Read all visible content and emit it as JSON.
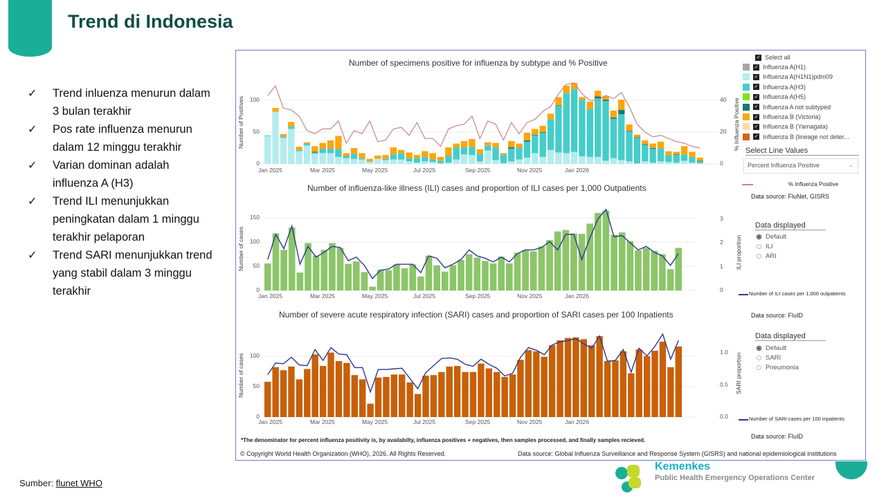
{
  "slide": {
    "title": "Trend di Indonesia",
    "bullets": [
      "Trend inluenza menurun dalam 3 bulan terakhir",
      "Pos rate influenza menurun dalam 12 minggu terakhir",
      "Varian dominan adalah influenza A (H3)",
      "Trend ILI menunjukkan peningkatan dalam 1 minggu terakhir pelaporan",
      "Trend SARI menunjukkan trend yang stabil dalam 3 minggu terakhir"
    ],
    "check_icon": "✓",
    "source_label": "Sumber: ",
    "source_link": "flunet WHO",
    "logo_text": "Kemenkes",
    "logo_subtitle": "Public Health Emergency Operations Center",
    "accent_color": "#1aae97",
    "title_color": "#0e4d46"
  },
  "panel": {
    "legend": {
      "select_all": "Select all",
      "items": [
        {
          "label": "Influenza A(H1)",
          "color": "#a6a6a6"
        },
        {
          "label": "Influenza A(H1N1)pdm09",
          "color": "#b3ecef"
        },
        {
          "label": "Influenza A(H3)",
          "color": "#45cdc9"
        },
        {
          "label": "Influenza A(H5)",
          "color": "#7ee21c"
        },
        {
          "label": "Influenza A not subtyped",
          "color": "#137a72"
        },
        {
          "label": "Influenza B (Victoria)",
          "color": "#ffa50f"
        },
        {
          "label": "Influenza B (Yamagata)",
          "color": "#fed9a6"
        },
        {
          "label": "Influenza B (lineage not deter...",
          "color": "#d4661a"
        }
      ]
    },
    "line_select": {
      "label": "Select Line Values",
      "value": "Percent Influenza Positive"
    },
    "flu_line_legend": "% Influenza Positive",
    "flu_source": "Data source: FluNet, GISRS",
    "ili_display": {
      "label": "Data displayed",
      "options": [
        "Default",
        "ILI",
        "ARI"
      ],
      "selected": "Default"
    },
    "ili_line_legend": "Number of ILI cases per 1,000 outpatients",
    "ili_source": "Data source: FluID",
    "sari_display": {
      "label": "Data displayed",
      "options": [
        "Default",
        "SARI",
        "Pneumonia"
      ],
      "selected": "Default"
    },
    "sari_line_legend": "Number of SARI cases per 100 inpatients",
    "sari_source": "Data source: FluID",
    "footnote": "*The denominator for percent influenza positivity is, by availabilty, influenza positives + negatives, then samples processed, and finally samples recieved.",
    "copyright": "© Copyright World Health Organization (WHO), 2026. All Rights Reserved.",
    "footer_source": "Data source: Global Influenza Surveillance and Response System (GISRS) and national epidemiological institutions"
  },
  "chart_data": [
    {
      "type": "bar",
      "stacked": true,
      "title": "Number of specimens positive for influenza by subtype and % Positive",
      "ylabel": "Number of Positives",
      "y2label": "% Influenza Positive",
      "x_ticks": [
        "Jan 2025",
        "Mar 2025",
        "May 2025",
        "Jul 2025",
        "Sep 2025",
        "Nov 2025",
        "Jan 2026"
      ],
      "y_ticks": [
        "0",
        "50",
        "100"
      ],
      "y2_ticks": [
        "0",
        "20",
        "40"
      ],
      "ylim": [
        0,
        130
      ],
      "y2lim": [
        0,
        52
      ],
      "series": [
        {
          "name": "Influenza A(H1N1)pdm09",
          "color": "#b3ecef",
          "values": [
            44,
            82,
            41,
            55,
            20,
            29,
            16,
            17,
            17,
            11,
            9,
            8,
            7,
            3,
            8,
            6,
            7,
            7,
            4,
            2,
            4,
            3,
            1,
            2,
            7,
            15,
            14,
            4,
            21,
            6,
            1,
            4,
            7,
            10,
            17,
            11,
            22,
            18,
            17,
            19,
            12,
            11,
            11,
            5,
            9,
            6,
            4,
            1,
            4,
            2,
            4,
            3,
            2,
            5,
            2,
            1
          ]
        },
        {
          "name": "Influenza A(H3)",
          "color": "#45cdc9",
          "values": [
            1,
            0,
            2,
            4,
            2,
            3,
            2,
            7,
            7,
            12,
            3,
            8,
            2,
            1,
            0,
            2,
            8,
            10,
            5,
            7,
            7,
            4,
            4,
            11,
            19,
            11,
            13,
            12,
            8,
            20,
            14,
            20,
            19,
            25,
            28,
            38,
            48,
            73,
            94,
            99,
            89,
            75,
            92,
            94,
            62,
            72,
            47,
            40,
            26,
            22,
            20,
            11,
            12,
            10,
            9,
            3
          ]
        },
        {
          "name": "Influenza A not subtyped",
          "color": "#137a72",
          "values": [
            0,
            0,
            0,
            0,
            0,
            0,
            1,
            0,
            0,
            0,
            0,
            0,
            0,
            0,
            0,
            0,
            0,
            0,
            0,
            0,
            0,
            0,
            0,
            0,
            0,
            0,
            0,
            0,
            0,
            0,
            0,
            2,
            0,
            2,
            1,
            1,
            0,
            1,
            0,
            0,
            0,
            0,
            3,
            2,
            2,
            7,
            1,
            1,
            1,
            1,
            0,
            0,
            1,
            0,
            0,
            1
          ]
        },
        {
          "name": "Influenza B (Victoria)",
          "color": "#ffa50f",
          "values": [
            0,
            6,
            4,
            7,
            5,
            2,
            9,
            9,
            13,
            21,
            5,
            9,
            8,
            4,
            5,
            6,
            11,
            5,
            9,
            5,
            9,
            10,
            6,
            13,
            6,
            10,
            12,
            7,
            5,
            7,
            2,
            10,
            6,
            12,
            9,
            10,
            9,
            13,
            12,
            9,
            4,
            12,
            9,
            6,
            11,
            16,
            10,
            4,
            6,
            7,
            11,
            6,
            4,
            13,
            8,
            5
          ]
        }
      ],
      "line": {
        "name": "% Influenza Positive",
        "color": "#c9848f",
        "axis": "right",
        "values": [
          43,
          49,
          35,
          34,
          30,
          21,
          19,
          22,
          22,
          27,
          13,
          21,
          19,
          27,
          14,
          15,
          22,
          23,
          18,
          26,
          16,
          16,
          11,
          22,
          24,
          25,
          30,
          16,
          27,
          25,
          15,
          26,
          19,
          26,
          28,
          33,
          36,
          44,
          50,
          51,
          44,
          40,
          40,
          43,
          41,
          45,
          36,
          25,
          20,
          17,
          18,
          16,
          14,
          13,
          11,
          10
        ]
      }
    },
    {
      "type": "bar",
      "title": "Number of influenza-like illness (ILI) cases and proportion of ILI cases per 1,000 Outpatients",
      "ylabel": "Number of cases",
      "y2label": "ILI proportion",
      "x_ticks": [
        "Jan 2025",
        "Mar 2025",
        "May 2025",
        "Jul 2025",
        "Sep 2025",
        "Nov 2025",
        "Jan 2026"
      ],
      "y_ticks": [
        "0",
        "50",
        "100",
        "150"
      ],
      "y2_ticks": [
        "0",
        "1",
        "2",
        "3"
      ],
      "ylim": [
        0,
        170
      ],
      "y2lim": [
        0,
        3.5
      ],
      "series": [
        {
          "color": "#8cc56a",
          "values": [
            56,
            118,
            84,
            130,
            37,
            98,
            72,
            84,
            98,
            88,
            55,
            60,
            38,
            8,
            43,
            42,
            54,
            46,
            54,
            29,
            72,
            52,
            39,
            52,
            63,
            75,
            68,
            61,
            56,
            70,
            56,
            78,
            84,
            81,
            91,
            104,
            122,
            125,
            118,
            117,
            138,
            160,
            165,
            115,
            120,
            102,
            83,
            88,
            82,
            75,
            44,
            88
          ]
        }
      ],
      "line": {
        "name": "Number of ILI cases per 1,000 outpatients",
        "color": "#2c3a8c",
        "axis": "right",
        "values": [
          1.3,
          2.35,
          1.75,
          2.7,
          1.1,
          1.85,
          1.4,
          1.6,
          1.85,
          1.8,
          1.25,
          1.4,
          1.05,
          0.5,
          0.85,
          0.9,
          1.1,
          1.1,
          1.1,
          0.75,
          1.45,
          1.35,
          0.95,
          1.1,
          1.3,
          1.7,
          1.45,
          1.35,
          1.2,
          1.4,
          1.2,
          1.55,
          1.7,
          1.7,
          1.8,
          2.05,
          1.7,
          2.35,
          2.35,
          1.3,
          2.2,
          3.0,
          3.4,
          2.25,
          2.3,
          2.0,
          1.7,
          1.85,
          1.6,
          1.45,
          1.05,
          1.55
        ]
      }
    },
    {
      "type": "bar",
      "title": "Number of severe acute respiratory infection (SARI) cases and proportion of SARI cases per 100 Inpatients",
      "ylabel": "Number of cases",
      "y2label": "SARI proportion",
      "x_ticks": [
        "Jan 2025",
        "Mar 2025",
        "May 2025",
        "Jul 2025",
        "Sep 2025",
        "Nov 2025",
        "Jan 2026"
      ],
      "y_ticks": [
        "0",
        "50",
        "100"
      ],
      "y2_ticks": [
        "0.0",
        "0.5",
        "1.0"
      ],
      "ylim": [
        0,
        140
      ],
      "y2lim": [
        0,
        1.35
      ],
      "series": [
        {
          "color": "#c8600a",
          "values": [
            58,
            82,
            77,
            83,
            62,
            79,
            103,
            84,
            106,
            92,
            89,
            69,
            62,
            22,
            65,
            66,
            70,
            70,
            57,
            38,
            68,
            69,
            74,
            83,
            84,
            74,
            74,
            88,
            80,
            74,
            66,
            70,
            94,
            110,
            108,
            99,
            118,
            126,
            130,
            131,
            128,
            118,
            133,
            92,
            93,
            108,
            72,
            111,
            100,
            109,
            124,
            82,
            116
          ]
        }
      ],
      "line": {
        "name": "Number of SARI cases per 100 inpatients",
        "color": "#2c3a8c",
        "axis": "right",
        "values": [
          0.66,
          0.84,
          0.83,
          0.93,
          0.81,
          0.8,
          1.05,
          0.88,
          1.08,
          0.98,
          0.97,
          0.77,
          0.77,
          0.39,
          0.74,
          0.74,
          0.75,
          0.76,
          0.6,
          0.44,
          0.69,
          0.8,
          0.91,
          0.92,
          0.9,
          0.82,
          0.79,
          0.9,
          0.82,
          0.76,
          0.64,
          0.68,
          0.93,
          1.08,
          1.04,
          0.97,
          1.12,
          1.17,
          1.19,
          1.22,
          1.14,
          1.07,
          1.26,
          0.87,
          0.88,
          1.05,
          0.7,
          1.07,
          0.95,
          1.1,
          1.29,
          0.9,
          1.19
        ]
      }
    }
  ]
}
